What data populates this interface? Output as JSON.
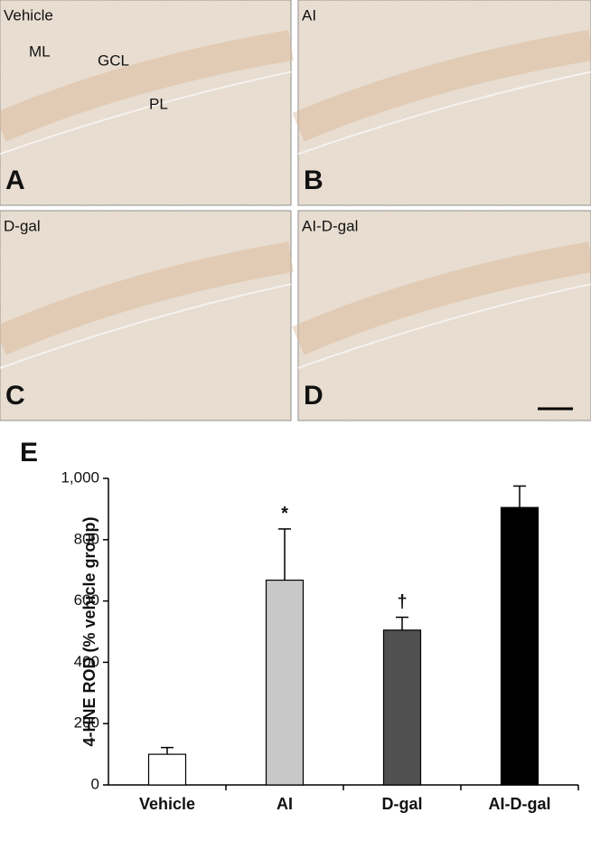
{
  "panels": [
    {
      "condition": "Vehicle",
      "letter": "A",
      "layers": [
        "ML",
        "GCL",
        "PL"
      ]
    },
    {
      "condition": "AI",
      "letter": "B"
    },
    {
      "condition": "D-gal",
      "letter": "C"
    },
    {
      "condition": "AI-D-gal",
      "letter": "D"
    }
  ],
  "chart_data": {
    "type": "bar",
    "panel_letter": "E",
    "y_label": "4-HNE ROD (% vehicle group)",
    "categories": [
      "Vehicle",
      "AI",
      "D-gal",
      "AI-D-gal"
    ],
    "values": [
      100,
      668,
      505,
      905
    ],
    "errors": [
      22,
      167,
      42,
      70
    ],
    "colors": [
      "#ffffff",
      "#c8c8c8",
      "#505050",
      "#000000"
    ],
    "significance": [
      null,
      "*",
      "†",
      null
    ],
    "ylim": [
      0,
      1000
    ],
    "yticks": [
      0,
      200,
      400,
      600,
      800,
      {
        "value": 1000,
        "label": "1,000"
      }
    ]
  }
}
